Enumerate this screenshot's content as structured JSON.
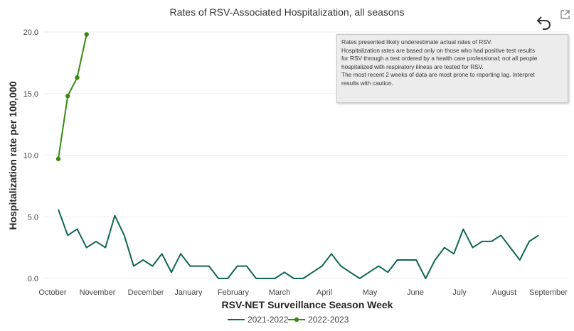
{
  "chart_data": {
    "type": "line",
    "title": "Rates of RSV-Associated Hospitalization, all seasons",
    "xlabel": "RSV-NET Surveillance Season Week",
    "ylabel": "Hospitalization rate per 100,000",
    "ylim": [
      0,
      20
    ],
    "y_ticks": [
      "0.0",
      "5.0",
      "10.0",
      "15.0",
      "20.0"
    ],
    "x_ticks": [
      "October",
      "November",
      "December",
      "January",
      "February",
      "March",
      "April",
      "May",
      "June",
      "July",
      "August",
      "September"
    ],
    "grid": true,
    "legend_position": "bottom",
    "series": [
      {
        "name": "2021-2022",
        "color": "#0e6655",
        "markers": false,
        "x": [
          0,
          1,
          2,
          3,
          4,
          5,
          6,
          7,
          8,
          9,
          10,
          11,
          12,
          13,
          14,
          15,
          16,
          17,
          18,
          19,
          20,
          21,
          22,
          23,
          24,
          25,
          26,
          27,
          28,
          29,
          30,
          31,
          32,
          33,
          34,
          35,
          36,
          37,
          38,
          39,
          40,
          41,
          42,
          43,
          44,
          45,
          46,
          47,
          48,
          49,
          50,
          51
        ],
        "values": [
          5.6,
          3.5,
          4.0,
          2.5,
          3.0,
          2.5,
          5.1,
          3.5,
          1.0,
          1.5,
          1.0,
          2.0,
          0.5,
          2.0,
          1.0,
          1.0,
          1.0,
          0.0,
          0.0,
          1.0,
          1.0,
          0.0,
          0.0,
          0.0,
          0.5,
          0.0,
          0.0,
          0.5,
          1.0,
          2.0,
          1.0,
          0.5,
          0.0,
          0.5,
          1.0,
          0.5,
          1.5,
          1.5,
          1.5,
          0.0,
          1.5,
          2.5,
          2.0,
          4.0,
          2.5,
          3.0,
          3.0,
          3.5,
          2.5,
          1.5,
          3.0,
          3.5
        ]
      },
      {
        "name": "2022-2023",
        "color": "#3a8a12",
        "markers": true,
        "x": [
          0,
          1,
          2,
          3
        ],
        "values": [
          9.7,
          14.8,
          16.3,
          19.8
        ]
      }
    ]
  },
  "tooltip": {
    "lines": [
      "Rates presented likely underestimate actual rates of RSV.",
      "Hospitalization rates are based only on those who had positive test results",
      "for RSV through a test ordered by a health care professional; not all people",
      "hospitalized with respiratory illness are tested for RSV.",
      "The most recent 2 weeks of data are most prone to reporting lag. Interpret",
      "results with caution."
    ]
  },
  "icons": {
    "back": "back-arrow-icon",
    "focus": "focus-mode-icon"
  }
}
